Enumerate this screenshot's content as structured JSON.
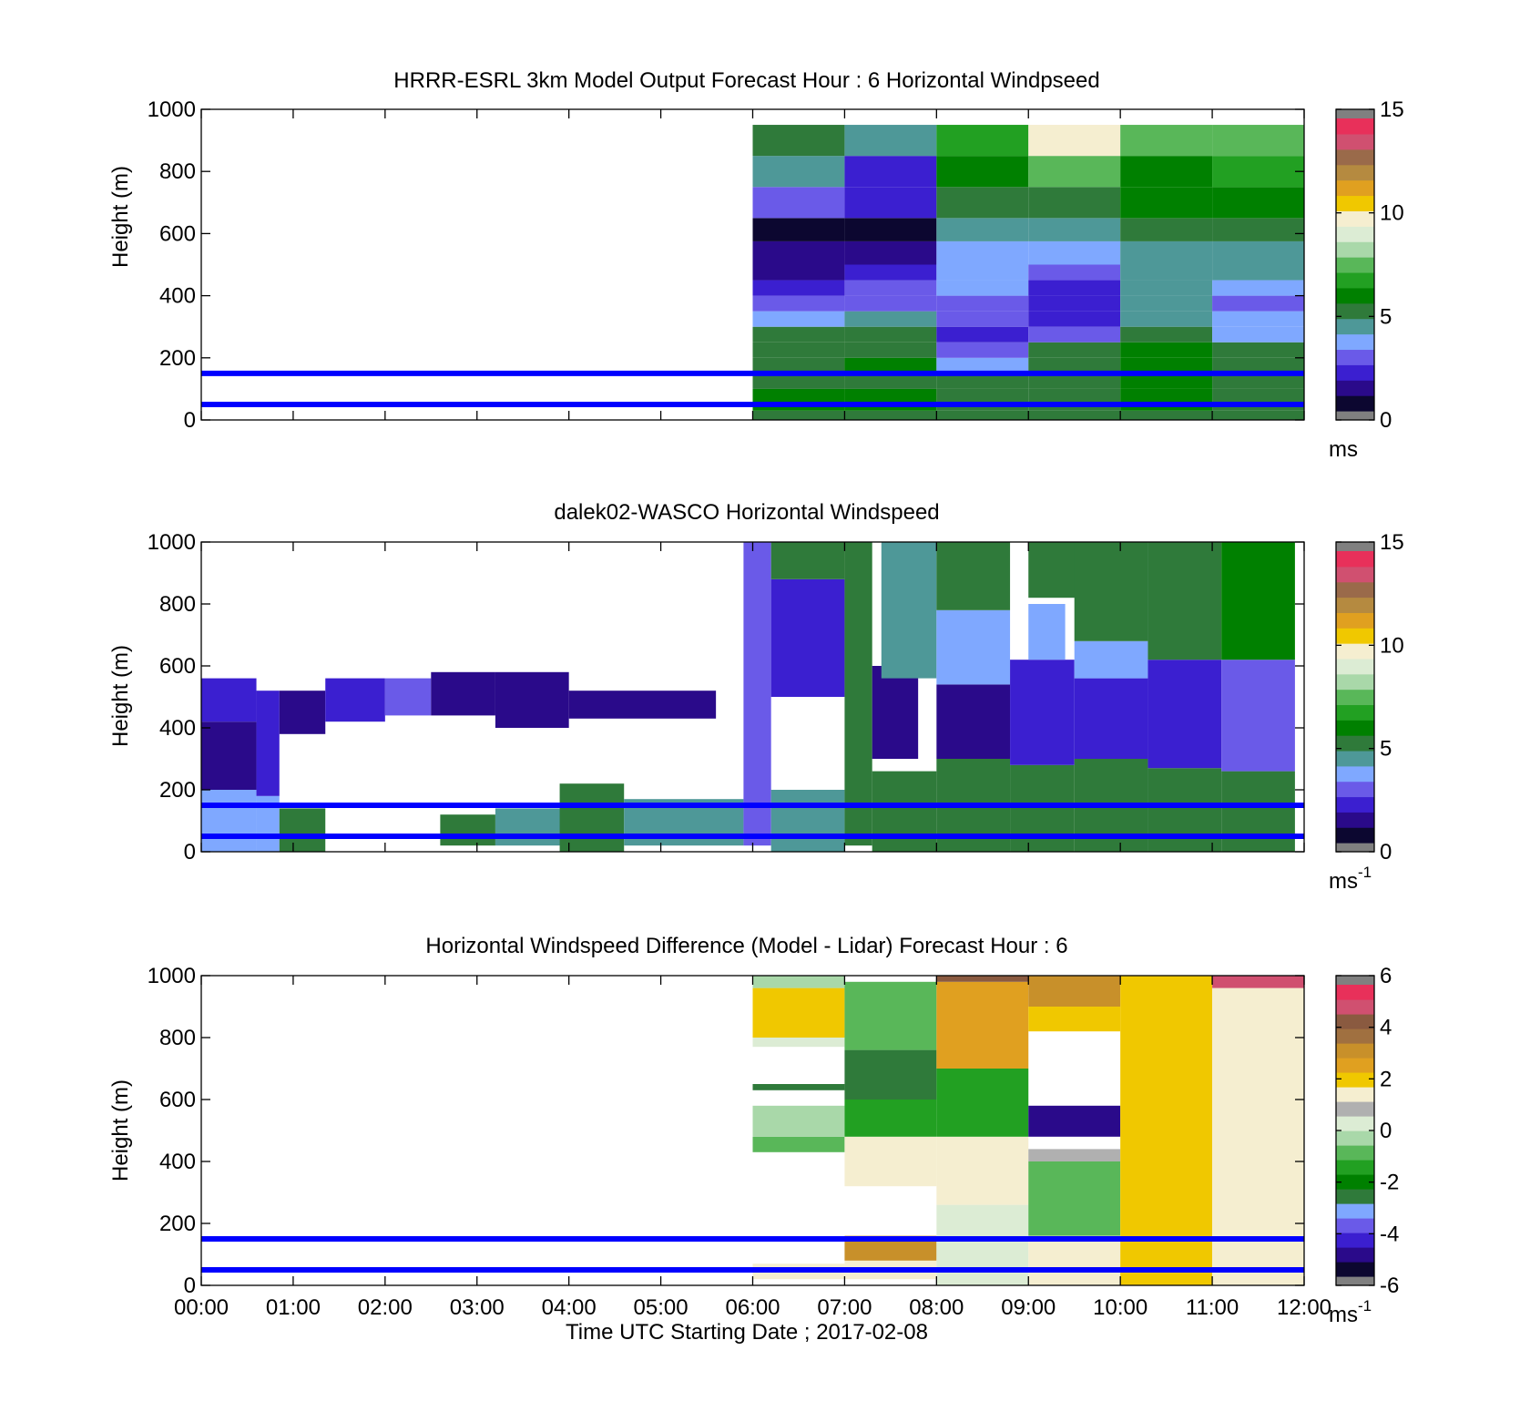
{
  "colors": {
    "reference_line": "#0000ff",
    "background": "#ffffff",
    "colorbar_windspeed": [
      "#808080",
      "#0c0730",
      "#2a0a8a",
      "#3b1fd0",
      "#6a5ae8",
      "#7fa8ff",
      "#4e9898",
      "#2f7a3a",
      "#008000",
      "#22a022",
      "#59b759",
      "#a9d8a9",
      "#dcecd4",
      "#f5eed0",
      "#f0c800",
      "#e0a020",
      "#b58a40",
      "#9a6a4a",
      "#d05070",
      "#e8305a",
      "#808080"
    ],
    "colorbar_difference": [
      "#808080",
      "#0c0730",
      "#2a0a8a",
      "#3b1fd0",
      "#6a5ae8",
      "#7fa8ff",
      "#2f7a3a",
      "#008000",
      "#22a022",
      "#59b759",
      "#a9d8a9",
      "#dcecd4",
      "#b0b0b0",
      "#f5eed0",
      "#f0c800",
      "#e0a020",
      "#c8902a",
      "#a07040",
      "#8a5a40",
      "#d05070",
      "#e8305a",
      "#808080"
    ]
  },
  "chart_data": [
    {
      "type": "heatmap",
      "title": "HRRR-ESRL 3km Model Output   Forecast Hour : 6 Horizontal Windpseed",
      "ylabel": "Height (m)",
      "ylim": [
        0,
        1000
      ],
      "yticks": [
        "0",
        "200",
        "400",
        "600",
        "800",
        "1000"
      ],
      "xlim_hours": [
        0,
        12
      ],
      "colorbar": {
        "min": 0,
        "max": 15,
        "ticks": [
          "0",
          "5",
          "10",
          "15"
        ],
        "unit": "ms",
        "unit_sup": ""
      },
      "reference_lines_m": [
        50,
        150
      ],
      "x_hours_start": [
        6,
        7,
        8,
        9,
        10,
        11
      ],
      "height_levels_m": [
        0,
        30,
        55,
        100,
        150,
        200,
        250,
        300,
        350,
        400,
        450,
        500,
        575,
        650,
        750,
        850,
        950
      ],
      "values_ms": [
        [
          4.8,
          4.8,
          5.2,
          5.5,
          5.2,
          5.0
        ],
        [
          5.8,
          6.2,
          5.0,
          5.2,
          6.3,
          5.0
        ],
        [
          5.8,
          6.2,
          5.0,
          5.2,
          6.3,
          5.0
        ],
        [
          5.4,
          5.4,
          4.8,
          5.0,
          5.9,
          5.1
        ],
        [
          5.2,
          5.6,
          3.2,
          5.0,
          6.0,
          5.2
        ],
        [
          5.0,
          5.3,
          2.6,
          5.0,
          5.6,
          5.0
        ],
        [
          5.2,
          5.0,
          2.2,
          2.5,
          5.2,
          3.2
        ],
        [
          3.2,
          4.0,
          2.6,
          1.8,
          4.2,
          3.3
        ],
        [
          2.5,
          3.0,
          2.8,
          2.2,
          4.2,
          3.0
        ],
        [
          1.6,
          2.5,
          3.2,
          1.6,
          4.0,
          3.2
        ],
        [
          1.0,
          1.8,
          3.2,
          2.6,
          4.4,
          4.4
        ],
        [
          0.9,
          1.5,
          3.5,
          3.9,
          4.4,
          4.4
        ],
        [
          0.6,
          0.5,
          4.0,
          4.2,
          4.8,
          5.0
        ],
        [
          2.6,
          1.8,
          4.9,
          5.0,
          5.8,
          5.8
        ],
        [
          4.2,
          2.2,
          5.6,
          7.2,
          6.2,
          6.5
        ],
        [
          5.0,
          4.0,
          7.0,
          10.0,
          7.2,
          7.2
        ]
      ]
    },
    {
      "type": "heatmap",
      "title": "dalek02-WASCO  Horizontal Windspeed",
      "ylabel": "Height (m)",
      "ylim": [
        0,
        1000
      ],
      "yticks": [
        "0",
        "200",
        "400",
        "600",
        "800",
        "1000"
      ],
      "xlim_hours": [
        0,
        12
      ],
      "colorbar": {
        "min": 0,
        "max": 15,
        "ticks": [
          "0",
          "5",
          "10",
          "15"
        ],
        "unit": "ms",
        "unit_sup": "-1"
      },
      "reference_lines_m": [
        50,
        150
      ],
      "blocks": [
        {
          "t0": 0.0,
          "t1": 0.6,
          "h0": 0,
          "h1": 200,
          "v": 3.2
        },
        {
          "t0": 0.0,
          "t1": 0.6,
          "h0": 200,
          "h1": 420,
          "v": 1.5
        },
        {
          "t0": 0.0,
          "t1": 0.6,
          "h0": 420,
          "h1": 560,
          "v": 2.2
        },
        {
          "t0": 0.6,
          "t1": 0.85,
          "h0": 0,
          "h1": 180,
          "v": 3.5
        },
        {
          "t0": 0.6,
          "t1": 0.85,
          "h0": 180,
          "h1": 520,
          "v": 1.8
        },
        {
          "t0": 0.85,
          "t1": 1.35,
          "h0": 0,
          "h1": 140,
          "v": 4.8
        },
        {
          "t0": 0.85,
          "t1": 1.35,
          "h0": 380,
          "h1": 520,
          "v": 1.2
        },
        {
          "t0": 1.35,
          "t1": 2.0,
          "h0": 420,
          "h1": 560,
          "v": 2.0
        },
        {
          "t0": 2.0,
          "t1": 2.5,
          "h0": 440,
          "h1": 560,
          "v": 2.5
        },
        {
          "t0": 2.5,
          "t1": 3.2,
          "h0": 440,
          "h1": 580,
          "v": 1.4
        },
        {
          "t0": 2.6,
          "t1": 3.2,
          "h0": 20,
          "h1": 120,
          "v": 5.0
        },
        {
          "t0": 3.2,
          "t1": 4.0,
          "h0": 400,
          "h1": 580,
          "v": 1.0
        },
        {
          "t0": 3.2,
          "t1": 4.0,
          "h0": 20,
          "h1": 140,
          "v": 4.6
        },
        {
          "t0": 3.9,
          "t1": 4.6,
          "h0": 0,
          "h1": 220,
          "v": 5.2
        },
        {
          "t0": 4.0,
          "t1": 5.6,
          "h0": 430,
          "h1": 520,
          "v": 1.0
        },
        {
          "t0": 4.6,
          "t1": 5.9,
          "h0": 20,
          "h1": 170,
          "v": 4.4
        },
        {
          "t0": 5.9,
          "t1": 6.2,
          "h0": 20,
          "h1": 1000,
          "v": 3.0
        },
        {
          "t0": 6.2,
          "t1": 7.0,
          "h0": 0,
          "h1": 200,
          "v": 4.0
        },
        {
          "t0": 6.2,
          "t1": 7.0,
          "h0": 500,
          "h1": 880,
          "v": 2.2
        },
        {
          "t0": 6.2,
          "t1": 7.0,
          "h0": 880,
          "h1": 1000,
          "v": 5.5
        },
        {
          "t0": 7.0,
          "t1": 7.3,
          "h0": 20,
          "h1": 1000,
          "v": 5.2
        },
        {
          "t0": 7.3,
          "t1": 7.8,
          "h0": 300,
          "h1": 600,
          "v": 1.5
        },
        {
          "t0": 7.3,
          "t1": 8.0,
          "h0": 0,
          "h1": 260,
          "v": 4.8
        },
        {
          "t0": 7.4,
          "t1": 8.0,
          "h0": 560,
          "h1": 1000,
          "v": 4.6
        },
        {
          "t0": 8.0,
          "t1": 8.8,
          "h0": 0,
          "h1": 300,
          "v": 5.0
        },
        {
          "t0": 8.0,
          "t1": 8.8,
          "h0": 300,
          "h1": 540,
          "v": 1.2
        },
        {
          "t0": 8.0,
          "t1": 8.8,
          "h0": 540,
          "h1": 780,
          "v": 3.5
        },
        {
          "t0": 8.0,
          "t1": 8.8,
          "h0": 780,
          "h1": 1000,
          "v": 5.2
        },
        {
          "t0": 8.8,
          "t1": 9.5,
          "h0": 0,
          "h1": 280,
          "v": 5.5
        },
        {
          "t0": 8.8,
          "t1": 9.5,
          "h0": 280,
          "h1": 620,
          "v": 1.6
        },
        {
          "t0": 9.0,
          "t1": 9.4,
          "h0": 620,
          "h1": 800,
          "v": 3.2
        },
        {
          "t0": 9.0,
          "t1": 9.6,
          "h0": 820,
          "h1": 1000,
          "v": 5.0
        },
        {
          "t0": 9.5,
          "t1": 10.3,
          "h0": 0,
          "h1": 300,
          "v": 5.0
        },
        {
          "t0": 9.5,
          "t1": 10.3,
          "h0": 300,
          "h1": 560,
          "v": 1.8
        },
        {
          "t0": 9.5,
          "t1": 10.3,
          "h0": 560,
          "h1": 680,
          "v": 3.2
        },
        {
          "t0": 9.5,
          "t1": 10.3,
          "h0": 680,
          "h1": 1000,
          "v": 5.2
        },
        {
          "t0": 10.3,
          "t1": 11.1,
          "h0": 0,
          "h1": 270,
          "v": 5.0
        },
        {
          "t0": 10.3,
          "t1": 11.1,
          "h0": 270,
          "h1": 620,
          "v": 2.0
        },
        {
          "t0": 10.3,
          "t1": 11.1,
          "h0": 620,
          "h1": 1000,
          "v": 5.4
        },
        {
          "t0": 11.1,
          "t1": 11.9,
          "h0": 0,
          "h1": 260,
          "v": 5.0
        },
        {
          "t0": 11.1,
          "t1": 11.9,
          "h0": 260,
          "h1": 620,
          "v": 2.6
        },
        {
          "t0": 11.1,
          "t1": 11.9,
          "h0": 620,
          "h1": 1000,
          "v": 5.6
        }
      ]
    },
    {
      "type": "heatmap",
      "title": "Horizontal Windspeed Difference (Model - Lidar) Forecast Hour : 6",
      "ylabel": "Height (m)",
      "xlabel": "Time UTC  Starting Date ; 2017-02-08",
      "ylim": [
        0,
        1000
      ],
      "yticks": [
        "0",
        "200",
        "400",
        "600",
        "800",
        "1000"
      ],
      "xlim_hours": [
        0,
        12
      ],
      "xticks": [
        "00:00",
        "01:00",
        "02:00",
        "03:00",
        "04:00",
        "05:00",
        "06:00",
        "07:00",
        "08:00",
        "09:00",
        "10:00",
        "11:00",
        "12:00"
      ],
      "colorbar": {
        "min": -6,
        "max": 6,
        "ticks": [
          "-6",
          "-4",
          "-2",
          "0",
          "2",
          "4",
          "6"
        ],
        "unit": "ms",
        "unit_sup": "-1"
      },
      "reference_lines_m": [
        50,
        150
      ],
      "blocks": [
        {
          "t0": 6,
          "t1": 7,
          "h0": 20,
          "h1": 70,
          "v": 1.4
        },
        {
          "t0": 6,
          "t1": 7,
          "h0": 430,
          "h1": 480,
          "v": -0.8
        },
        {
          "t0": 6,
          "t1": 7,
          "h0": 480,
          "h1": 580,
          "v": -0.5
        },
        {
          "t0": 6,
          "t1": 7,
          "h0": 630,
          "h1": 650,
          "v": -2.5
        },
        {
          "t0": 6,
          "t1": 7,
          "h0": 770,
          "h1": 800,
          "v": 0.5
        },
        {
          "t0": 6,
          "t1": 7,
          "h0": 800,
          "h1": 960,
          "v": 1.8
        },
        {
          "t0": 6,
          "t1": 7,
          "h0": 960,
          "h1": 1000,
          "v": -0.5
        },
        {
          "t0": 7,
          "t1": 8,
          "h0": 20,
          "h1": 80,
          "v": 1.5
        },
        {
          "t0": 7,
          "t1": 8,
          "h0": 80,
          "h1": 160,
          "v": 3.2
        },
        {
          "t0": 7,
          "t1": 8,
          "h0": 320,
          "h1": 480,
          "v": 1.4
        },
        {
          "t0": 7,
          "t1": 8,
          "h0": 480,
          "h1": 600,
          "v": -1.5
        },
        {
          "t0": 7,
          "t1": 8,
          "h0": 600,
          "h1": 760,
          "v": -3.0
        },
        {
          "t0": 7,
          "t1": 8,
          "h0": 760,
          "h1": 980,
          "v": -1.0
        },
        {
          "t0": 8,
          "t1": 9,
          "h0": 0,
          "h1": 260,
          "v": 0.4
        },
        {
          "t0": 8,
          "t1": 9,
          "h0": 260,
          "h1": 480,
          "v": 1.5
        },
        {
          "t0": 8,
          "t1": 9,
          "h0": 480,
          "h1": 700,
          "v": -1.8
        },
        {
          "t0": 8,
          "t1": 9,
          "h0": 700,
          "h1": 980,
          "v": 2.4
        },
        {
          "t0": 8,
          "t1": 9,
          "h0": 980,
          "h1": 1000,
          "v": 4.6
        },
        {
          "t0": 9,
          "t1": 10,
          "h0": 0,
          "h1": 160,
          "v": 1.2
        },
        {
          "t0": 9,
          "t1": 10,
          "h0": 160,
          "h1": 400,
          "v": -1.0
        },
        {
          "t0": 9,
          "t1": 10,
          "h0": 400,
          "h1": 440,
          "v": 1.0
        },
        {
          "t0": 9,
          "t1": 10,
          "h0": 480,
          "h1": 580,
          "v": -5.2
        },
        {
          "t0": 9,
          "t1": 10,
          "h0": 820,
          "h1": 900,
          "v": 2.2
        },
        {
          "t0": 9,
          "t1": 10,
          "h0": 900,
          "h1": 1000,
          "v": 3.2
        },
        {
          "t0": 10,
          "t1": 11,
          "h0": 0,
          "h1": 1000,
          "v": 2.2
        },
        {
          "t0": 11,
          "t1": 12,
          "h0": 0,
          "h1": 960,
          "v": 1.6
        },
        {
          "t0": 11,
          "t1": 12,
          "h0": 960,
          "h1": 1000,
          "v": 4.8
        }
      ]
    }
  ]
}
